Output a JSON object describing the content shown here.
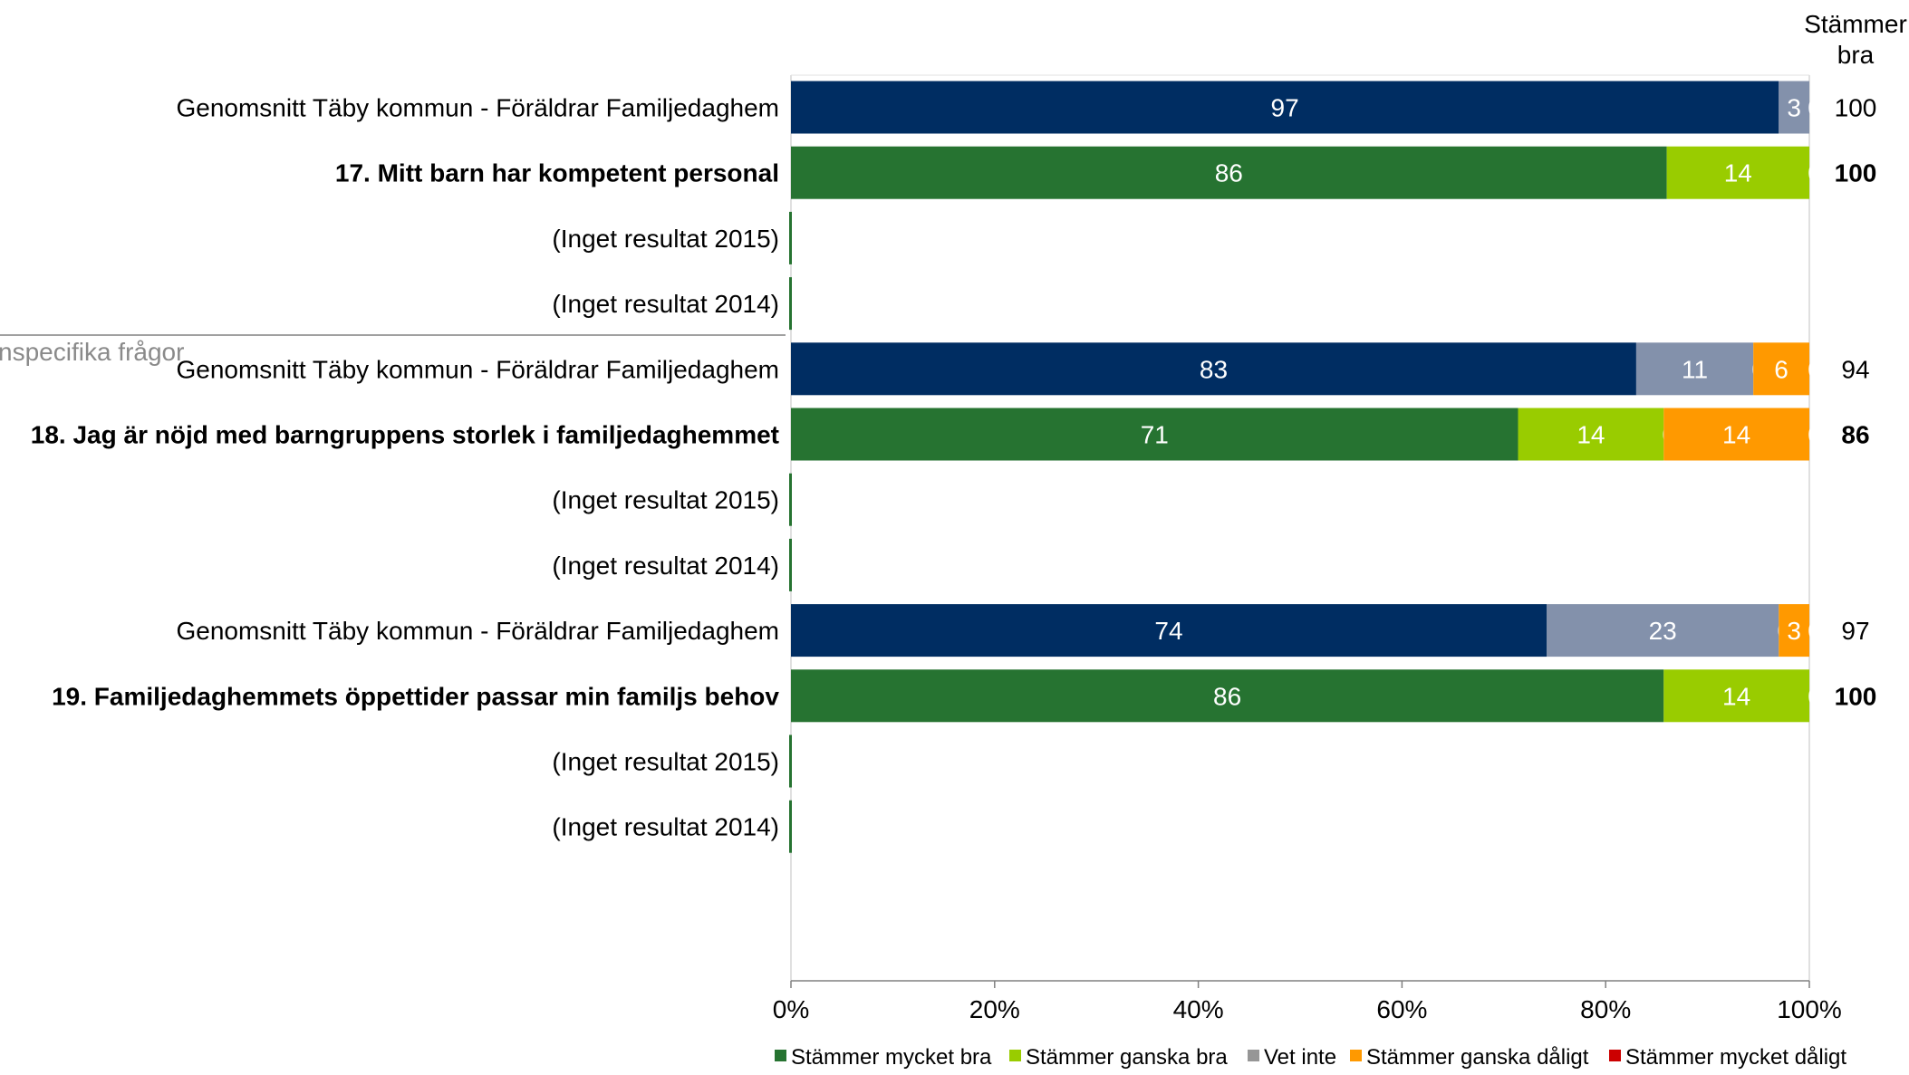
{
  "chart_data": {
    "type": "bar",
    "orientation": "horizontal",
    "stacked": true,
    "x_axis": {
      "min": 0,
      "max": 100,
      "ticks": [
        "0%",
        "20%",
        "40%",
        "60%",
        "80%",
        "100%"
      ]
    },
    "summary_column_header": "Stämmer\nbra",
    "section_label": "nspecifika frågor",
    "series": [
      {
        "name": "Stämmer mycket bra",
        "color": "#267331"
      },
      {
        "name": "Stämmer ganska bra",
        "color": "#99cc00"
      },
      {
        "name": "Vet inte",
        "color": "#969696"
      },
      {
        "name": "Stämmer ganska dåligt",
        "color": "#ff9900"
      },
      {
        "name": "Stämmer mycket dåligt",
        "color": "#cc0000"
      }
    ],
    "avg_colors": {
      "Stämmer mycket bra": "#002d62",
      "Vet inte": "#8391ab"
    },
    "rows": [
      {
        "label": "Genomsnitt Täby kommun - Föräldrar Familjedaghem",
        "bold": false,
        "kind": "avg",
        "summary": "100",
        "segments": [
          {
            "series": "Stämmer mycket bra",
            "value": 97,
            "label": "97"
          },
          {
            "series": "Vet inte",
            "value": 3,
            "label": "3"
          },
          {
            "series": "Stämmer ganska dåligt",
            "value": 0,
            "label": "0"
          }
        ]
      },
      {
        "label": "17. Mitt barn har kompetent personal",
        "bold": true,
        "kind": "unit",
        "summary": "100",
        "segments": [
          {
            "series": "Stämmer mycket bra",
            "value": 86,
            "label": "86"
          },
          {
            "series": "Stämmer ganska bra",
            "value": 14,
            "label": "14"
          },
          {
            "series": "Vet inte",
            "value": 0,
            "label": "0"
          }
        ]
      },
      {
        "label": "(Inget resultat 2015)",
        "bold": false,
        "kind": "empty",
        "summary": "",
        "segments": []
      },
      {
        "label": "(Inget resultat 2014)",
        "bold": false,
        "kind": "empty",
        "summary": "",
        "segments": []
      },
      {
        "label": "Genomsnitt Täby kommun - Föräldrar Familjedaghem",
        "bold": false,
        "kind": "avg",
        "summary": "94",
        "segments": [
          {
            "series": "Stämmer mycket bra",
            "value": 83,
            "label": "83"
          },
          {
            "series": "Vet inte",
            "value": 11.5,
            "label": "11"
          },
          {
            "series": "Vet inte",
            "value": 0,
            "label": "0"
          },
          {
            "series": "Stämmer ganska dåligt",
            "value": 5.5,
            "label": "6"
          },
          {
            "series": "Stämmer mycket dåligt",
            "value": 0,
            "label": "0"
          }
        ]
      },
      {
        "label": "18. Jag är nöjd med barngruppens storlek i familjedaghemmet",
        "bold": true,
        "kind": "unit",
        "summary": "86",
        "segments": [
          {
            "series": "Stämmer mycket bra",
            "value": 71.4,
            "label": "71"
          },
          {
            "series": "Stämmer ganska bra",
            "value": 14.3,
            "label": "14"
          },
          {
            "series": "Vet inte",
            "value": 0,
            "label": "0"
          },
          {
            "series": "Stämmer ganska dåligt",
            "value": 14.3,
            "label": "14"
          },
          {
            "series": "Stämmer mycket dåligt",
            "value": 0,
            "label": "0"
          }
        ]
      },
      {
        "label": "(Inget resultat 2015)",
        "bold": false,
        "kind": "empty",
        "summary": "",
        "segments": []
      },
      {
        "label": "(Inget resultat 2014)",
        "bold": false,
        "kind": "empty",
        "summary": "",
        "segments": []
      },
      {
        "label": "Genomsnitt Täby kommun - Föräldrar Familjedaghem",
        "bold": false,
        "kind": "avg",
        "summary": "97",
        "segments": [
          {
            "series": "Stämmer mycket bra",
            "value": 74.2,
            "label": "74"
          },
          {
            "series": "Vet inte",
            "value": 22.8,
            "label": "23"
          },
          {
            "series": "Vet inte",
            "value": 0,
            "label": "0"
          },
          {
            "series": "Stämmer ganska dåligt",
            "value": 3,
            "label": "3"
          },
          {
            "series": "Stämmer mycket dåligt",
            "value": 0,
            "label": "0"
          }
        ]
      },
      {
        "label": "19. Familjedaghemmets öppettider passar min familjs behov",
        "bold": true,
        "kind": "unit",
        "summary": "100",
        "segments": [
          {
            "series": "Stämmer mycket bra",
            "value": 85.7,
            "label": "86"
          },
          {
            "series": "Stämmer ganska bra",
            "value": 14.3,
            "label": "14"
          },
          {
            "series": "Vet inte",
            "value": 0,
            "label": "0"
          }
        ]
      },
      {
        "label": "(Inget resultat 2015)",
        "bold": false,
        "kind": "empty",
        "summary": "",
        "segments": []
      },
      {
        "label": "(Inget resultat 2014)",
        "bold": false,
        "kind": "empty",
        "summary": "",
        "segments": []
      }
    ]
  }
}
